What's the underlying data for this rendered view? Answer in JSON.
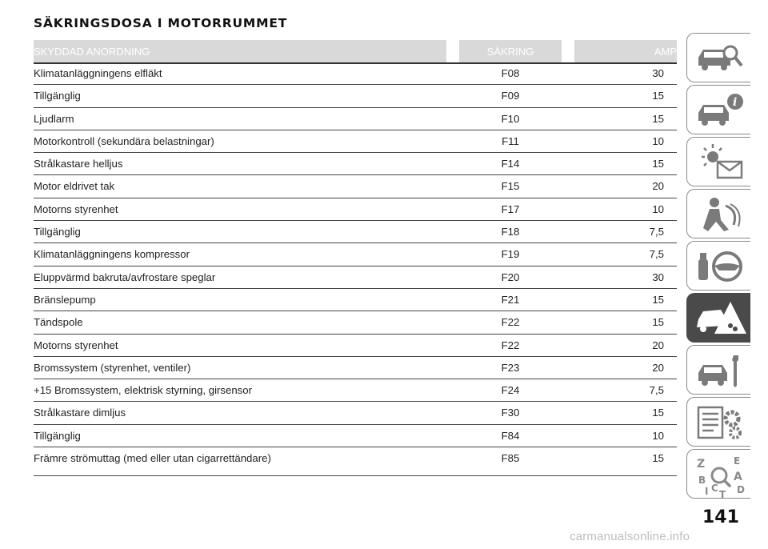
{
  "title": "SÄKRINGSDOSA I MOTORRUMMET",
  "table": {
    "headers": [
      "SKYDDAD ANORDNING",
      "SÄKRING",
      "AMP"
    ],
    "rows": [
      [
        "Klimatanläggningens elfläkt",
        "F08",
        "30"
      ],
      [
        "Tillgänglig",
        "F09",
        "15"
      ],
      [
        "Ljudlarm",
        "F10",
        "15"
      ],
      [
        "Motorkontroll (sekundära belastningar)",
        "F11",
        "10"
      ],
      [
        "Strålkastare helljus",
        "F14",
        "15"
      ],
      [
        "Motor eldrivet tak",
        "F15",
        "20"
      ],
      [
        "Motorns styrenhet",
        "F17",
        "10"
      ],
      [
        "Tillgänglig",
        "F18",
        "7,5"
      ],
      [
        "Klimatanläggningens kompressor",
        "F19",
        "7,5"
      ],
      [
        "Eluppvärmd bakruta/avfrostare speglar",
        "F20",
        "30"
      ],
      [
        "Bränslepump",
        "F21",
        "15"
      ],
      [
        "Tändspole",
        "F22",
        "15"
      ],
      [
        "Motorns styrenhet",
        "F22",
        "20"
      ],
      [
        "Bromssystem (styrenhet, ventiler)",
        "F23",
        "20"
      ],
      [
        "+15 Bromssystem, elektrisk styrning, girsensor",
        "F24",
        "7,5"
      ],
      [
        "Strålkastare dimljus",
        "F30",
        "15"
      ],
      [
        "Tillgänglig",
        "F84",
        "10"
      ],
      [
        "Främre strömuttag (med eller utan cigarrettändare)",
        "F85",
        "15"
      ]
    ]
  },
  "sidebar": {
    "tabs": [
      {
        "icon": "car-search-icon",
        "active": false
      },
      {
        "icon": "car-info-icon",
        "active": false
      },
      {
        "icon": "light-envelope-icon",
        "active": false
      },
      {
        "icon": "airbag-person-icon",
        "active": false
      },
      {
        "icon": "key-steering-wheel-icon",
        "active": false
      },
      {
        "icon": "car-crash-warning-icon",
        "active": true
      },
      {
        "icon": "car-wrench-icon",
        "active": false
      },
      {
        "icon": "specs-gear-icon",
        "active": false
      },
      {
        "icon": "alphabet-index-icon",
        "active": false
      }
    ],
    "accent_active": "#4a4a4a",
    "border_color": "#8a8a8a"
  },
  "page_number": "141",
  "watermark": "carmanualsonline.info"
}
